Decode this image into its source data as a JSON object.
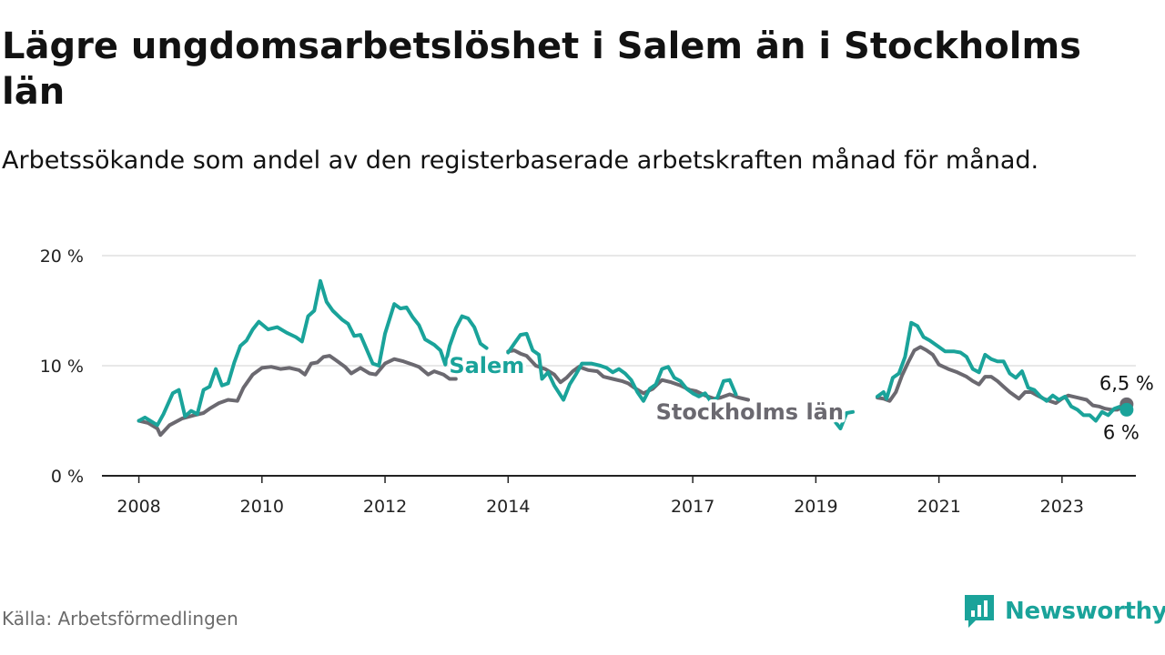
{
  "header": {
    "title": "Lägre ungdomsarbetslöshet i Salem än i Stockholms län",
    "subtitle": "Arbetssökande som andel av den registerbaserade arbetskraften månad för månad."
  },
  "footer": {
    "source": "Källa: Arbetsförmedlingen",
    "brand": "Newsworthy"
  },
  "colors": {
    "salem": "#1aa39a",
    "stockholm": "#6b6970",
    "grid": "#d9d9d9",
    "axis": "#222222"
  },
  "chart_data": {
    "type": "line",
    "title": "Lägre ungdomsarbetslöshet i Salem än i Stockholms län",
    "xlabel": "",
    "ylabel": "",
    "ylim": [
      0,
      20
    ],
    "xlim": [
      2007.4,
      2024.2
    ],
    "y_ticks": [
      0,
      10,
      20
    ],
    "y_tick_labels": [
      "0 %",
      "10 %",
      "20 %"
    ],
    "x_ticks": [
      2008,
      2010,
      2012,
      2014,
      2017,
      2019,
      2021,
      2023
    ],
    "x_tick_labels": [
      "2008",
      "2010",
      "2012",
      "2014",
      "2017",
      "2019",
      "2021",
      "2023"
    ],
    "end_labels": {
      "salem": "6 %",
      "stockholm": "6,5 %"
    },
    "series": [
      {
        "name": "Salem",
        "points": [
          [
            2008.0,
            5.0
          ],
          [
            2008.1,
            5.3
          ],
          [
            2008.3,
            4.6
          ],
          [
            2008.4,
            5.6
          ],
          [
            2008.55,
            7.5
          ],
          [
            2008.65,
            7.8
          ],
          [
            2008.75,
            5.4
          ],
          [
            2008.85,
            5.9
          ],
          [
            2008.95,
            5.6
          ],
          [
            2009.05,
            7.8
          ],
          [
            2009.15,
            8.1
          ],
          [
            2009.25,
            9.7
          ],
          [
            2009.35,
            8.2
          ],
          [
            2009.45,
            8.4
          ],
          [
            2009.55,
            10.3
          ],
          [
            2009.65,
            11.8
          ],
          [
            2009.75,
            12.3
          ],
          [
            2009.85,
            13.3
          ],
          [
            2009.95,
            14.0
          ],
          [
            2010.1,
            13.3
          ],
          [
            2010.25,
            13.5
          ],
          [
            2010.4,
            13.0
          ],
          [
            2010.55,
            12.6
          ],
          [
            2010.65,
            12.2
          ],
          [
            2010.75,
            14.5
          ],
          [
            2010.85,
            15.0
          ],
          [
            2010.95,
            17.7
          ],
          [
            2011.05,
            15.8
          ],
          [
            2011.15,
            15.0
          ],
          [
            2011.3,
            14.2
          ],
          [
            2011.4,
            13.8
          ],
          [
            2011.5,
            12.7
          ],
          [
            2011.6,
            12.8
          ],
          [
            2011.7,
            11.5
          ],
          [
            2011.8,
            10.2
          ],
          [
            2011.9,
            10.0
          ],
          [
            2012.0,
            12.9
          ],
          [
            2012.15,
            15.6
          ],
          [
            2012.25,
            15.2
          ],
          [
            2012.35,
            15.3
          ],
          [
            2012.45,
            14.4
          ],
          [
            2012.55,
            13.7
          ],
          [
            2012.65,
            12.4
          ],
          [
            2012.8,
            11.9
          ],
          [
            2012.9,
            11.4
          ],
          [
            2012.98,
            10.1
          ],
          [
            2013.05,
            11.8
          ],
          [
            2013.15,
            13.4
          ],
          [
            2013.25,
            14.5
          ],
          [
            2013.35,
            14.3
          ],
          [
            2013.45,
            13.5
          ],
          [
            2013.55,
            12.0
          ],
          [
            2013.65,
            11.6
          ]
        ]
      },
      {
        "name": "Salem (forts.)",
        "points": [
          [
            2014.0,
            11.2
          ],
          [
            2014.1,
            12.0
          ],
          [
            2014.2,
            12.8
          ],
          [
            2014.3,
            12.9
          ],
          [
            2014.4,
            11.4
          ],
          [
            2014.5,
            11.0
          ],
          [
            2014.55,
            8.8
          ],
          [
            2014.65,
            9.4
          ],
          [
            2014.75,
            8.2
          ],
          [
            2014.9,
            6.9
          ],
          [
            2015.0,
            8.3
          ],
          [
            2015.1,
            9.2
          ],
          [
            2015.2,
            10.2
          ],
          [
            2015.35,
            10.2
          ],
          [
            2015.5,
            10.0
          ],
          [
            2015.6,
            9.8
          ],
          [
            2015.7,
            9.4
          ],
          [
            2015.8,
            9.7
          ],
          [
            2015.9,
            9.3
          ],
          [
            2016.0,
            8.7
          ],
          [
            2016.1,
            7.6
          ],
          [
            2016.2,
            6.8
          ],
          [
            2016.3,
            7.9
          ],
          [
            2016.4,
            8.3
          ],
          [
            2016.5,
            9.7
          ],
          [
            2016.6,
            9.9
          ],
          [
            2016.7,
            8.9
          ],
          [
            2016.8,
            8.6
          ],
          [
            2016.9,
            7.9
          ],
          [
            2017.0,
            7.5
          ],
          [
            2017.1,
            7.2
          ],
          [
            2017.2,
            7.5
          ],
          [
            2017.3,
            6.7
          ],
          [
            2017.4,
            7.1
          ],
          [
            2017.5,
            8.6
          ],
          [
            2017.6,
            8.7
          ],
          [
            2017.7,
            7.4
          ]
        ]
      },
      {
        "name": "Salem (forts. 2)",
        "points": [
          [
            2019.2,
            5.3
          ],
          [
            2019.3,
            5.0
          ],
          [
            2019.4,
            4.3
          ],
          [
            2019.5,
            5.7
          ],
          [
            2019.6,
            5.8
          ]
        ]
      },
      {
        "name": "Salem (forts. 3)",
        "points": [
          [
            2020.0,
            7.2
          ],
          [
            2020.1,
            7.6
          ],
          [
            2020.15,
            7.0
          ],
          [
            2020.25,
            8.9
          ],
          [
            2020.35,
            9.3
          ],
          [
            2020.45,
            10.8
          ],
          [
            2020.55,
            13.9
          ],
          [
            2020.65,
            13.6
          ],
          [
            2020.75,
            12.6
          ],
          [
            2020.85,
            12.3
          ],
          [
            2021.0,
            11.7
          ],
          [
            2021.1,
            11.3
          ],
          [
            2021.25,
            11.3
          ],
          [
            2021.35,
            11.2
          ],
          [
            2021.45,
            10.8
          ],
          [
            2021.55,
            9.7
          ],
          [
            2021.65,
            9.4
          ],
          [
            2021.75,
            11.0
          ],
          [
            2021.85,
            10.6
          ],
          [
            2021.95,
            10.4
          ],
          [
            2022.05,
            10.4
          ],
          [
            2022.15,
            9.3
          ],
          [
            2022.25,
            8.9
          ],
          [
            2022.35,
            9.5
          ],
          [
            2022.45,
            8.0
          ],
          [
            2022.55,
            7.8
          ],
          [
            2022.65,
            7.2
          ],
          [
            2022.75,
            6.8
          ],
          [
            2022.85,
            7.3
          ],
          [
            2022.95,
            6.9
          ],
          [
            2023.05,
            7.2
          ],
          [
            2023.15,
            6.3
          ],
          [
            2023.25,
            6.0
          ],
          [
            2023.35,
            5.5
          ],
          [
            2023.45,
            5.5
          ],
          [
            2023.55,
            5.0
          ],
          [
            2023.65,
            5.8
          ],
          [
            2023.75,
            5.5
          ],
          [
            2023.85,
            6.1
          ],
          [
            2023.95,
            6.3
          ],
          [
            2024.05,
            6.0
          ]
        ]
      },
      {
        "name": "Stockholms län",
        "points": [
          [
            2008.0,
            5.0
          ],
          [
            2008.15,
            4.8
          ],
          [
            2008.3,
            4.3
          ],
          [
            2008.35,
            3.7
          ],
          [
            2008.5,
            4.6
          ],
          [
            2008.7,
            5.2
          ],
          [
            2008.9,
            5.5
          ],
          [
            2009.05,
            5.7
          ],
          [
            2009.15,
            6.1
          ],
          [
            2009.3,
            6.6
          ],
          [
            2009.45,
            6.9
          ],
          [
            2009.6,
            6.8
          ],
          [
            2009.7,
            8.0
          ],
          [
            2009.85,
            9.2
          ],
          [
            2010.0,
            9.8
          ],
          [
            2010.15,
            9.9
          ],
          [
            2010.3,
            9.7
          ],
          [
            2010.45,
            9.8
          ],
          [
            2010.6,
            9.6
          ],
          [
            2010.7,
            9.2
          ],
          [
            2010.8,
            10.2
          ],
          [
            2010.9,
            10.3
          ],
          [
            2011.0,
            10.8
          ],
          [
            2011.1,
            10.9
          ],
          [
            2011.2,
            10.5
          ],
          [
            2011.35,
            9.9
          ],
          [
            2011.45,
            9.3
          ],
          [
            2011.6,
            9.8
          ],
          [
            2011.75,
            9.3
          ],
          [
            2011.85,
            9.2
          ],
          [
            2012.0,
            10.2
          ],
          [
            2012.15,
            10.6
          ],
          [
            2012.3,
            10.4
          ],
          [
            2012.45,
            10.1
          ],
          [
            2012.55,
            9.9
          ],
          [
            2012.7,
            9.2
          ],
          [
            2012.8,
            9.5
          ],
          [
            2012.95,
            9.2
          ],
          [
            2013.05,
            8.8
          ],
          [
            2013.15,
            8.8
          ]
        ]
      },
      {
        "name": "Stockholms län (forts.)",
        "points": [
          [
            2014.0,
            11.3
          ],
          [
            2014.1,
            11.4
          ],
          [
            2014.2,
            11.1
          ],
          [
            2014.3,
            10.9
          ],
          [
            2014.45,
            10.0
          ],
          [
            2014.6,
            9.7
          ],
          [
            2014.75,
            9.2
          ],
          [
            2014.85,
            8.5
          ],
          [
            2014.95,
            8.9
          ],
          [
            2015.05,
            9.5
          ],
          [
            2015.15,
            9.9
          ],
          [
            2015.3,
            9.6
          ],
          [
            2015.45,
            9.5
          ],
          [
            2015.55,
            9.0
          ],
          [
            2015.7,
            8.8
          ],
          [
            2015.85,
            8.6
          ],
          [
            2015.95,
            8.4
          ],
          [
            2016.05,
            8.0
          ],
          [
            2016.2,
            7.5
          ],
          [
            2016.35,
            7.9
          ],
          [
            2016.5,
            8.7
          ],
          [
            2016.65,
            8.5
          ],
          [
            2016.8,
            8.2
          ],
          [
            2016.95,
            7.8
          ],
          [
            2017.05,
            7.7
          ],
          [
            2017.2,
            7.3
          ],
          [
            2017.35,
            7.0
          ],
          [
            2017.45,
            7.1
          ],
          [
            2017.6,
            7.4
          ],
          [
            2017.75,
            7.1
          ],
          [
            2017.9,
            6.9
          ]
        ]
      },
      {
        "name": "Stockholms län (forts. 2)",
        "points": [
          [
            2020.0,
            7.1
          ],
          [
            2020.1,
            7.0
          ],
          [
            2020.2,
            6.8
          ],
          [
            2020.3,
            7.6
          ],
          [
            2020.4,
            9.1
          ],
          [
            2020.5,
            10.3
          ],
          [
            2020.6,
            11.4
          ],
          [
            2020.7,
            11.7
          ],
          [
            2020.8,
            11.4
          ],
          [
            2020.9,
            11.0
          ],
          [
            2021.0,
            10.1
          ],
          [
            2021.15,
            9.7
          ],
          [
            2021.3,
            9.4
          ],
          [
            2021.45,
            9.0
          ],
          [
            2021.55,
            8.6
          ],
          [
            2021.65,
            8.3
          ],
          [
            2021.75,
            9.0
          ],
          [
            2021.85,
            9.0
          ],
          [
            2021.95,
            8.6
          ],
          [
            2022.05,
            8.1
          ],
          [
            2022.15,
            7.6
          ],
          [
            2022.3,
            7.0
          ],
          [
            2022.4,
            7.6
          ],
          [
            2022.5,
            7.6
          ],
          [
            2022.6,
            7.3
          ],
          [
            2022.7,
            7.0
          ],
          [
            2022.8,
            6.8
          ],
          [
            2022.9,
            6.6
          ],
          [
            2023.0,
            7.0
          ],
          [
            2023.1,
            7.3
          ],
          [
            2023.25,
            7.1
          ],
          [
            2023.4,
            6.9
          ],
          [
            2023.5,
            6.4
          ],
          [
            2023.6,
            6.3
          ],
          [
            2023.7,
            6.1
          ],
          [
            2023.8,
            6.0
          ],
          [
            2023.9,
            6.0
          ],
          [
            2024.05,
            6.5
          ]
        ]
      }
    ],
    "labels": [
      "Salem",
      "Stockholms län"
    ]
  }
}
